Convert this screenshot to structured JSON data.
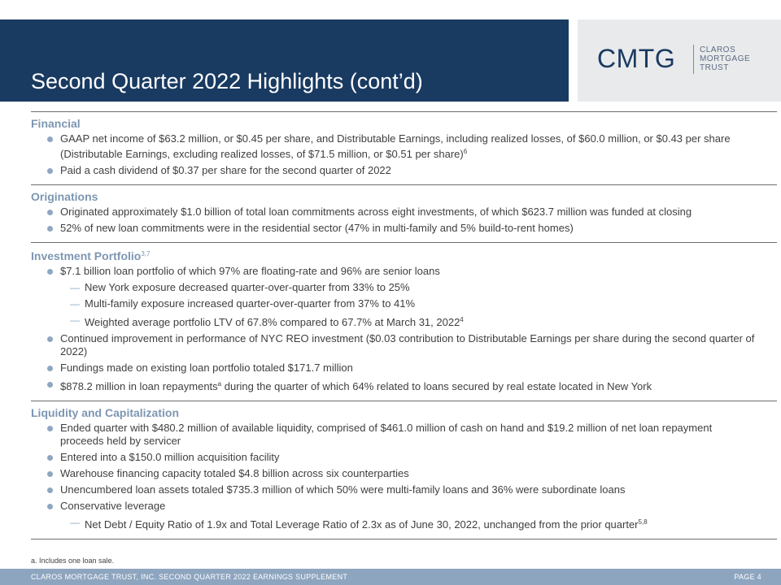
{
  "header": {
    "title": "Second Quarter 2022 Highlights (cont’d)"
  },
  "logo": {
    "mark": "CMTG",
    "line1": "CLAROS",
    "line2": "MORTGAGE",
    "line3": "TRUST"
  },
  "sections": {
    "financial": {
      "title": "Financial",
      "items": [
        {
          "text": "GAAP net income of $63.2 million, or $0.45 per share, and Distributable Earnings, including realized losses, of $60.0 million, or $0.43 per share (Distributable Earnings, excluding realized losses, of $71.5 million, or $0.51 per share)",
          "sup": "6"
        },
        {
          "text": "Paid a cash dividend of $0.37 per share for the second quarter of 2022"
        }
      ]
    },
    "originations": {
      "title": "Originations",
      "items": [
        {
          "text": "Originated approximately $1.0 billion of total loan commitments across eight investments, of which $623.7 million was funded at closing"
        },
        {
          "text": "52% of new loan commitments were in the residential sector (47% in multi-family and 5% build-to-rent homes)"
        }
      ]
    },
    "portfolio": {
      "title": "Investment Portfolio",
      "title_sup": "3,7",
      "items": [
        {
          "text": "$7.1 billion loan portfolio of which 97% are floating-rate and 96% are senior loans"
        },
        {
          "text": "New York exposure decreased quarter-over-quarter from 33% to 25%"
        },
        {
          "text": "Multi-family exposure increased quarter-over-quarter from 37% to 41%"
        },
        {
          "text": "Weighted average portfolio LTV of 67.8% compared to 67.7% at March 31, 2022",
          "sup": "4"
        },
        {
          "text": "Continued improvement in performance of NYC REO investment ($0.03 contribution to Distributable Earnings per share during the second quarter of 2022)"
        },
        {
          "text": "Fundings made on existing loan portfolio totaled $171.7 million"
        },
        {
          "text": "$878.2 million in loan repayments",
          "sup": "a",
          "text_after": " during the quarter of which 64% related to loans secured by real estate located in New York"
        }
      ]
    },
    "liquidity": {
      "title": "Liquidity and Capitalization",
      "items": [
        {
          "text": "Ended quarter with $480.2 million of available liquidity, comprised of $461.0 million of cash on hand and $19.2 million of net loan repayment proceeds held by servicer"
        },
        {
          "text": "Entered into a $150.0 million acquisition facility"
        },
        {
          "text": "Warehouse financing capacity totaled $4.8 billion across six counterparties"
        },
        {
          "text": "Unencumbered loan assets totaled $735.3 million of which 50% were multi-family loans and 36% were subordinate loans"
        },
        {
          "text": "Conservative leverage"
        },
        {
          "text": "Net Debt / Equity Ratio of 1.9x and Total Leverage Ratio of 2.3x as of June 30, 2022, unchanged from the prior quarter",
          "sup": "5,8"
        }
      ]
    }
  },
  "footnote": "a. Includes one loan sale.",
  "footer": {
    "left": "CLAROS MORTGAGE TRUST, INC. SECOND QUARTER 2022 EARNINGS SUPPLEMENT",
    "page": "PAGE 4"
  }
}
